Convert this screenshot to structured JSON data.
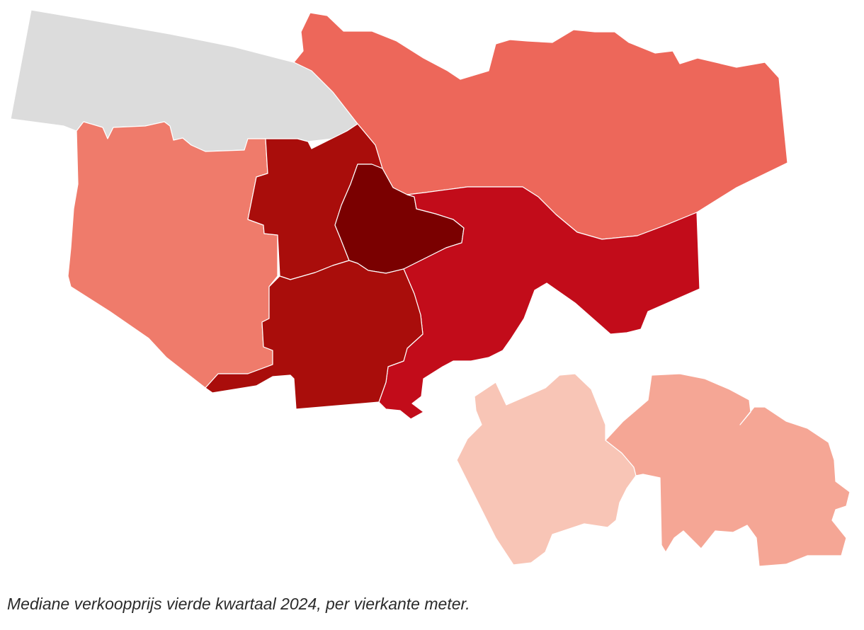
{
  "caption": "Mediane verkoopprijs vierde kwartaal 2024, per vierkante meter.",
  "colors": {
    "no_data": "#dcdcdc",
    "very_low": "#f8c5b6",
    "low": "#f5a695",
    "medium_low": "#ef7b6b",
    "medium": "#ed675a",
    "medium_high": "#c20c1a",
    "high": "#a90d0b",
    "highest": "#7a0000"
  },
  "regions": [
    {
      "id": "nw",
      "color_key": "no_data"
    },
    {
      "id": "north",
      "color_key": "medium"
    },
    {
      "id": "west",
      "color_key": "medium_low"
    },
    {
      "id": "west-center",
      "color_key": "high"
    },
    {
      "id": "center",
      "color_key": "highest"
    },
    {
      "id": "east",
      "color_key": "medium_high"
    },
    {
      "id": "south",
      "color_key": "high"
    },
    {
      "id": "se-left",
      "color_key": "very_low"
    },
    {
      "id": "se-right",
      "color_key": "low"
    }
  ]
}
